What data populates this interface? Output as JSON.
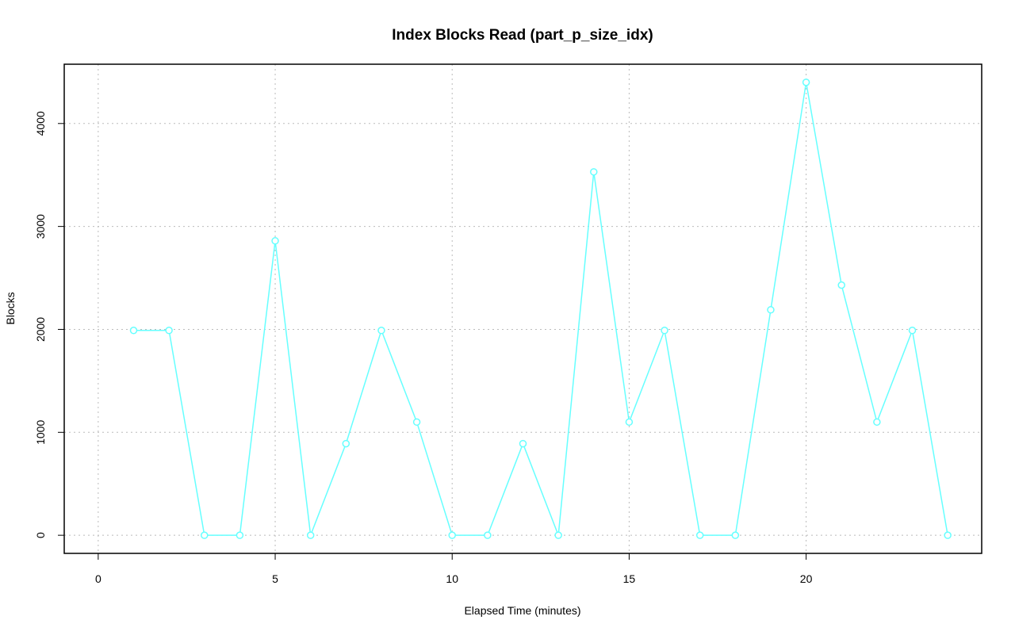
{
  "chart_data": {
    "type": "line",
    "title": "Index Blocks Read (part_p_size_idx)",
    "x_label": "Elapsed Time (minutes)",
    "y_label": "Blocks",
    "x": [
      1,
      2,
      3,
      4,
      5,
      6,
      7,
      8,
      9,
      10,
      11,
      12,
      13,
      14,
      15,
      16,
      17,
      18,
      19,
      20,
      21,
      22,
      23,
      24
    ],
    "series": [
      {
        "color": "#66ffff",
        "values": [
          1990,
          1990,
          0,
          0,
          2860,
          0,
          890,
          1990,
          1100,
          0,
          0,
          890,
          0,
          3530,
          1100,
          1990,
          0,
          0,
          2190,
          4400,
          2430,
          1100,
          1990,
          0
        ]
      }
    ],
    "xlim": [
      -0.96,
      24.96
    ],
    "xticks": [
      0,
      5,
      10,
      15,
      20
    ],
    "ylim": [
      -176,
      4576
    ],
    "yticks": [
      0,
      1000,
      2000,
      3000,
      4000
    ],
    "grid": true
  }
}
